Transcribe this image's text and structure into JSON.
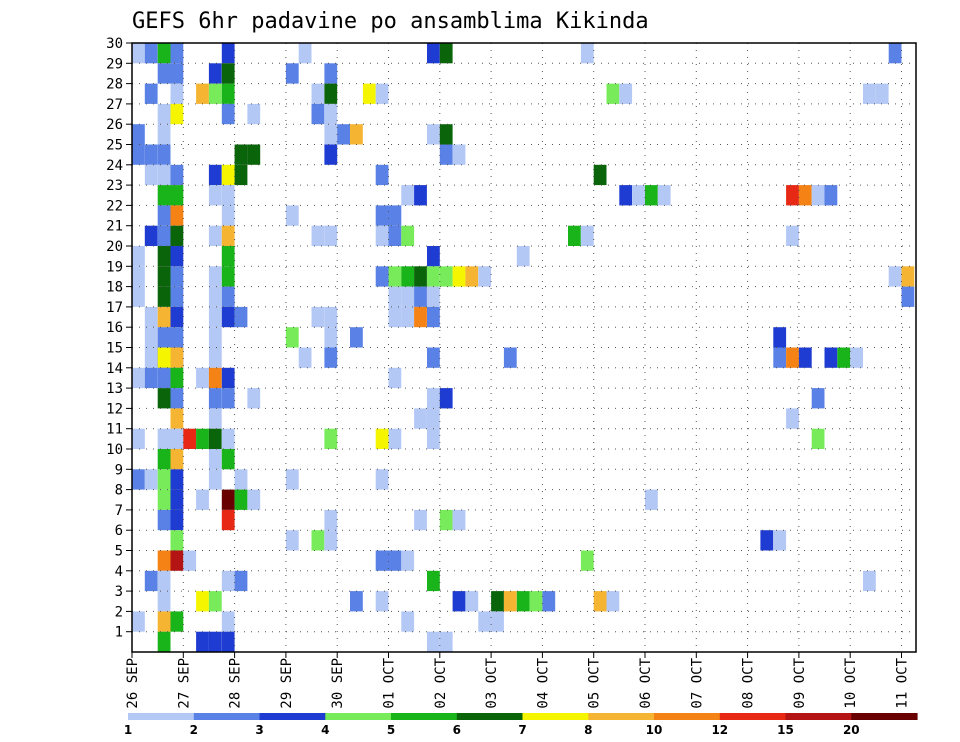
{
  "chart_data": {
    "type": "heatmap",
    "title": "GEFS 6hr padavine po ansamblima Kikinda",
    "xlabel": "",
    "ylabel": "",
    "x_tick_labels": [
      "26 SEP",
      "27 SEP",
      "28 SEP",
      "29 SEP",
      "30 SEP",
      "01 OCT",
      "02 OCT",
      "03 OCT",
      "04 OCT",
      "05 OCT",
      "06 OCT",
      "07 OCT",
      "08 OCT",
      "09 OCT",
      "10 OCT",
      "11 OCT"
    ],
    "x_range_days": [
      0,
      15.35
    ],
    "y_range_members": [
      0,
      30
    ],
    "y_tick_labels": [
      "1",
      "2",
      "3",
      "4",
      "5",
      "6",
      "7",
      "8",
      "9",
      "10",
      "11",
      "12",
      "13",
      "14",
      "15",
      "16",
      "17",
      "18",
      "19",
      "20",
      "21",
      "22",
      "23",
      "24",
      "25",
      "26",
      "27",
      "28",
      "29",
      "30"
    ],
    "grid": true,
    "colorbar": {
      "levels": [
        "1",
        "2",
        "3",
        "4",
        "5",
        "6",
        "7",
        "8",
        "10",
        "12",
        "15",
        "20"
      ],
      "colors": [
        "#b4c8f5",
        "#5a82e6",
        "#1e3cd2",
        "#78eb5a",
        "#19b419",
        "#0a640a",
        "#f5f500",
        "#f5b432",
        "#f58214",
        "#e62814",
        "#b41414",
        "#690000"
      ]
    },
    "cell_width_days": 0.25,
    "cells": [
      [
        30,
        0.25,
        0
      ],
      [
        30,
        0.5,
        6
      ],
      [
        30,
        1.75,
        1
      ],
      [
        30,
        5.25,
        0
      ],
      [
        30,
        5.5,
        1
      ],
      [
        29,
        0.0,
        0
      ],
      [
        29,
        0.25,
        1
      ],
      [
        29,
        0.5,
        4
      ],
      [
        29,
        0.75,
        1
      ],
      [
        29,
        1.75,
        2
      ],
      [
        29,
        3.25,
        0
      ],
      [
        29,
        5.75,
        2
      ],
      [
        29,
        6.0,
        5
      ],
      [
        29,
        8.75,
        0
      ],
      [
        29,
        14.75,
        1
      ],
      [
        28,
        0.5,
        1
      ],
      [
        28,
        0.75,
        1
      ],
      [
        28,
        1.5,
        2
      ],
      [
        28,
        1.75,
        5
      ],
      [
        28,
        3.0,
        1
      ],
      [
        28,
        3.75,
        1
      ],
      [
        27,
        0.25,
        1
      ],
      [
        27,
        0.75,
        0
      ],
      [
        27,
        1.25,
        7
      ],
      [
        27,
        1.5,
        3
      ],
      [
        27,
        1.75,
        4
      ],
      [
        27,
        3.5,
        0
      ],
      [
        27,
        3.75,
        5
      ],
      [
        27,
        4.5,
        6
      ],
      [
        27,
        4.75,
        0
      ],
      [
        27,
        9.25,
        3
      ],
      [
        27,
        9.5,
        0
      ],
      [
        27,
        14.25,
        0
      ],
      [
        27,
        14.5,
        0
      ],
      [
        26,
        0.5,
        0
      ],
      [
        26,
        0.75,
        6
      ],
      [
        26,
        1.75,
        1
      ],
      [
        26,
        2.25,
        0
      ],
      [
        26,
        3.5,
        1
      ],
      [
        26,
        3.75,
        0
      ],
      [
        25,
        0.0,
        1
      ],
      [
        25,
        0.5,
        0
      ],
      [
        25,
        3.75,
        0
      ],
      [
        25,
        4.0,
        1
      ],
      [
        25,
        4.25,
        7
      ],
      [
        25,
        5.75,
        0
      ],
      [
        25,
        6.0,
        5
      ],
      [
        24,
        0.0,
        1
      ],
      [
        24,
        0.25,
        1
      ],
      [
        24,
        0.5,
        1
      ],
      [
        24,
        2.0,
        5
      ],
      [
        24,
        2.25,
        5
      ],
      [
        24,
        3.75,
        2
      ],
      [
        24,
        6.0,
        1
      ],
      [
        24,
        6.25,
        0
      ],
      [
        23,
        0.25,
        0
      ],
      [
        23,
        0.5,
        0
      ],
      [
        23,
        0.75,
        1
      ],
      [
        23,
        1.5,
        2
      ],
      [
        23,
        1.75,
        6
      ],
      [
        23,
        2.0,
        5
      ],
      [
        23,
        4.75,
        1
      ],
      [
        23,
        9.0,
        5
      ],
      [
        22,
        0.5,
        4
      ],
      [
        22,
        0.75,
        4
      ],
      [
        22,
        1.5,
        0
      ],
      [
        22,
        1.75,
        0
      ],
      [
        22,
        5.25,
        0
      ],
      [
        22,
        5.5,
        2
      ],
      [
        22,
        9.5,
        2
      ],
      [
        22,
        9.75,
        0
      ],
      [
        22,
        10.0,
        4
      ],
      [
        22,
        10.25,
        0
      ],
      [
        22,
        12.75,
        9
      ],
      [
        22,
        13.0,
        8
      ],
      [
        22,
        13.25,
        0
      ],
      [
        22,
        13.5,
        1
      ],
      [
        21,
        0.5,
        1
      ],
      [
        21,
        0.75,
        8
      ],
      [
        21,
        1.75,
        0
      ],
      [
        21,
        3.0,
        0
      ],
      [
        21,
        4.75,
        1
      ],
      [
        21,
        5.0,
        1
      ],
      [
        20,
        0.25,
        2
      ],
      [
        20,
        0.5,
        1
      ],
      [
        20,
        0.75,
        5
      ],
      [
        20,
        1.5,
        0
      ],
      [
        20,
        1.75,
        7
      ],
      [
        20,
        3.5,
        0
      ],
      [
        20,
        3.75,
        0
      ],
      [
        20,
        4.75,
        0
      ],
      [
        20,
        5.0,
        1
      ],
      [
        20,
        5.25,
        3
      ],
      [
        20,
        8.5,
        4
      ],
      [
        20,
        8.75,
        0
      ],
      [
        20,
        12.75,
        0
      ],
      [
        19,
        0.0,
        0
      ],
      [
        19,
        0.5,
        5
      ],
      [
        19,
        0.75,
        2
      ],
      [
        19,
        1.75,
        4
      ],
      [
        19,
        5.75,
        2
      ],
      [
        19,
        7.5,
        0
      ],
      [
        18,
        0.0,
        0
      ],
      [
        18,
        0.5,
        5
      ],
      [
        18,
        0.75,
        1
      ],
      [
        18,
        1.5,
        0
      ],
      [
        18,
        1.75,
        4
      ],
      [
        18,
        4.75,
        1
      ],
      [
        18,
        5.0,
        3
      ],
      [
        18,
        5.25,
        4
      ],
      [
        18,
        5.5,
        5
      ],
      [
        18,
        5.75,
        3
      ],
      [
        18,
        6.0,
        3
      ],
      [
        18,
        6.25,
        6
      ],
      [
        18,
        6.5,
        7
      ],
      [
        18,
        6.75,
        0
      ],
      [
        18,
        14.75,
        0
      ],
      [
        18,
        15.0,
        7
      ],
      [
        17,
        0.0,
        0
      ],
      [
        17,
        0.5,
        5
      ],
      [
        17,
        0.75,
        1
      ],
      [
        17,
        1.5,
        0
      ],
      [
        17,
        1.75,
        1
      ],
      [
        17,
        5.0,
        0
      ],
      [
        17,
        5.25,
        0
      ],
      [
        17,
        5.5,
        1
      ],
      [
        17,
        5.75,
        0
      ],
      [
        17,
        15.0,
        1
      ],
      [
        16,
        0.25,
        0
      ],
      [
        16,
        0.5,
        7
      ],
      [
        16,
        0.75,
        2
      ],
      [
        16,
        1.5,
        0
      ],
      [
        16,
        1.75,
        2
      ],
      [
        16,
        2.0,
        1
      ],
      [
        16,
        3.5,
        0
      ],
      [
        16,
        3.75,
        0
      ],
      [
        16,
        5.0,
        0
      ],
      [
        16,
        5.25,
        0
      ],
      [
        16,
        5.5,
        8
      ],
      [
        16,
        5.75,
        1
      ],
      [
        15,
        0.25,
        0
      ],
      [
        15,
        0.5,
        1
      ],
      [
        15,
        0.75,
        1
      ],
      [
        15,
        1.5,
        0
      ],
      [
        15,
        3.0,
        3
      ],
      [
        15,
        3.75,
        0
      ],
      [
        15,
        4.25,
        1
      ],
      [
        15,
        12.5,
        2
      ],
      [
        14,
        0.25,
        0
      ],
      [
        14,
        0.5,
        2
      ],
      [
        14,
        0.75,
        1
      ],
      [
        14,
        1.5,
        0
      ],
      [
        14,
        3.25,
        0
      ],
      [
        14,
        3.75,
        1
      ],
      [
        14,
        5.75,
        1
      ],
      [
        14,
        7.25,
        1
      ],
      [
        14,
        12.5,
        1
      ],
      [
        14,
        12.75,
        8
      ],
      [
        14,
        13.0,
        2
      ],
      [
        14,
        13.5,
        2
      ],
      [
        14,
        13.75,
        4
      ],
      [
        14,
        14.0,
        0
      ],
      [
        14,
        0.5,
        6
      ],
      [
        14,
        0.75,
        7
      ],
      [
        13,
        0.0,
        0
      ],
      [
        13,
        0.25,
        1
      ],
      [
        13,
        0.5,
        1
      ],
      [
        13,
        0.75,
        4
      ],
      [
        13,
        1.25,
        0
      ],
      [
        13,
        1.5,
        8
      ],
      [
        13,
        1.75,
        2
      ],
      [
        13,
        5.0,
        0
      ],
      [
        12,
        0.5,
        5
      ],
      [
        12,
        0.75,
        1
      ],
      [
        12,
        1.5,
        1
      ],
      [
        12,
        1.75,
        1
      ],
      [
        12,
        2.25,
        0
      ],
      [
        12,
        5.75,
        0
      ],
      [
        12,
        6.0,
        2
      ],
      [
        12,
        13.25,
        1
      ],
      [
        11,
        0.75,
        7
      ],
      [
        11,
        1.5,
        0
      ],
      [
        11,
        5.5,
        0
      ],
      [
        11,
        5.75,
        0
      ],
      [
        11,
        12.75,
        0
      ],
      [
        10,
        0.0,
        0
      ],
      [
        10,
        0.5,
        0
      ],
      [
        10,
        0.75,
        0
      ],
      [
        10,
        1.0,
        9
      ],
      [
        10,
        1.25,
        4
      ],
      [
        10,
        1.5,
        5
      ],
      [
        10,
        1.75,
        0
      ],
      [
        10,
        3.75,
        3
      ],
      [
        10,
        4.75,
        6
      ],
      [
        10,
        5.0,
        0
      ],
      [
        10,
        5.75,
        0
      ],
      [
        10,
        13.25,
        3
      ],
      [
        9,
        0.5,
        4
      ],
      [
        9,
        0.75,
        7
      ],
      [
        9,
        1.5,
        0
      ],
      [
        9,
        1.75,
        4
      ],
      [
        8,
        0.0,
        1
      ],
      [
        8,
        0.25,
        0
      ],
      [
        8,
        0.5,
        3
      ],
      [
        8,
        0.75,
        2
      ],
      [
        8,
        1.5,
        0
      ],
      [
        8,
        2.0,
        0
      ],
      [
        8,
        3.0,
        0
      ],
      [
        8,
        4.75,
        0
      ],
      [
        7,
        0.5,
        3
      ],
      [
        7,
        0.75,
        2
      ],
      [
        7,
        1.25,
        0
      ],
      [
        7,
        1.75,
        11
      ],
      [
        7,
        2.0,
        4
      ],
      [
        7,
        2.25,
        0
      ],
      [
        7,
        10.0,
        0
      ],
      [
        6,
        0.5,
        1
      ],
      [
        6,
        0.75,
        2
      ],
      [
        6,
        1.75,
        9
      ],
      [
        6,
        3.75,
        0
      ],
      [
        6,
        5.5,
        0
      ],
      [
        6,
        6.0,
        3
      ],
      [
        6,
        6.25,
        0
      ],
      [
        5,
        0.75,
        3
      ],
      [
        5,
        3.0,
        0
      ],
      [
        5,
        3.5,
        3
      ],
      [
        5,
        3.75,
        0
      ],
      [
        5,
        12.25,
        2
      ],
      [
        5,
        12.5,
        0
      ],
      [
        4,
        0.5,
        8
      ],
      [
        4,
        0.75,
        10
      ],
      [
        4,
        1.0,
        0
      ],
      [
        4,
        4.75,
        1
      ],
      [
        4,
        5.0,
        1
      ],
      [
        4,
        5.25,
        0
      ],
      [
        4,
        8.75,
        3
      ],
      [
        3,
        0.25,
        1
      ],
      [
        3,
        0.5,
        0
      ],
      [
        3,
        1.75,
        0
      ],
      [
        3,
        2.0,
        1
      ],
      [
        3,
        5.75,
        4
      ],
      [
        3,
        14.25,
        0
      ],
      [
        2,
        0.5,
        0
      ],
      [
        2,
        1.25,
        6
      ],
      [
        2,
        1.5,
        3
      ],
      [
        2,
        4.25,
        1
      ],
      [
        2,
        4.75,
        0
      ],
      [
        2,
        6.25,
        2
      ],
      [
        2,
        6.5,
        0
      ],
      [
        2,
        7.0,
        5
      ],
      [
        2,
        7.25,
        7
      ],
      [
        2,
        7.5,
        4
      ],
      [
        2,
        7.75,
        3
      ],
      [
        2,
        8.0,
        1
      ],
      [
        2,
        9.0,
        7
      ],
      [
        2,
        9.25,
        0
      ],
      [
        1,
        0.0,
        0
      ],
      [
        1,
        0.5,
        7
      ],
      [
        1,
        0.75,
        4
      ],
      [
        1,
        1.75,
        0
      ],
      [
        1,
        5.25,
        0
      ],
      [
        1,
        6.75,
        0
      ],
      [
        1,
        7.0,
        0
      ],
      [
        0,
        0.5,
        4
      ],
      [
        0,
        1.25,
        2
      ],
      [
        0,
        1.5,
        2
      ],
      [
        0,
        1.75,
        2
      ],
      [
        0,
        5.75,
        0
      ],
      [
        0,
        6.0,
        0
      ]
    ]
  }
}
